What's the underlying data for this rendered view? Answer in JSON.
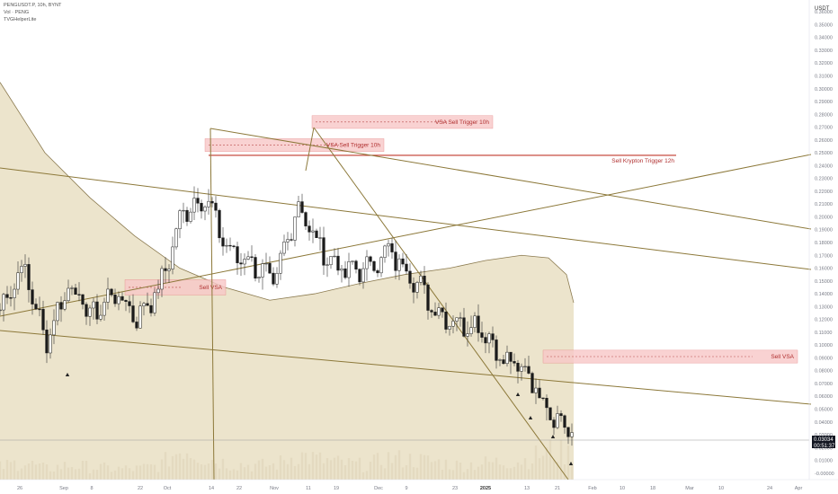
{
  "header": {
    "symbol_line": "PENGUSDT.P, 10h, BYNT",
    "vol_line": "Vol · PENG",
    "indicator_line": "TVGHelperLite"
  },
  "colors": {
    "background": "#ffffff",
    "candle": "#1a1a1a",
    "wick": "#333333",
    "volume": "#b6ae9a",
    "band_fill": "#e9dfc3",
    "band_line": "#8b7a4f",
    "trendline": "#8c7839",
    "zone_fill": "#f8c8c8",
    "zone_border": "#e27777",
    "red_line": "#c0392b",
    "price_tag": "#131722"
  },
  "chart_data": {
    "type": "candlestick",
    "currency": "USDT",
    "y_axis": {
      "range": [
        -0.005,
        0.365
      ],
      "ticks": [
        "-0.00000",
        "0.01000",
        "0.02000",
        "0.03000",
        "0.04000",
        "0.05000",
        "0.06000",
        "0.07000",
        "0.08000",
        "0.09000",
        "0.10000",
        "0.11000",
        "0.12000",
        "0.13000",
        "0.14000",
        "0.15000",
        "0.16000",
        "0.17000",
        "0.18000",
        "0.19000",
        "0.20000",
        "0.21000",
        "0.22000",
        "0.23000",
        "0.24000",
        "0.25000",
        "0.26000",
        "0.27000",
        "0.28000",
        "0.29000",
        "0.30000",
        "0.31000",
        "0.32000",
        "0.33000",
        "0.34000",
        "0.35000",
        "0.36000"
      ]
    },
    "x_axis": {
      "ticks": [
        "26",
        "Sep",
        "8",
        "22",
        "Oct",
        "14",
        "22",
        "Nov",
        "11",
        "19",
        "Dec",
        "9",
        "23",
        "2025",
        "13",
        "21",
        "Feb",
        "10",
        "18",
        "Mar",
        "10",
        "24",
        "Apr"
      ]
    },
    "last_price": "0.03034",
    "countdown": "00:51:37",
    "price_path": [
      [
        0.125,
        0.13
      ],
      [
        0.15,
        0.175
      ],
      [
        0.11,
        0.095
      ],
      [
        0.135,
        0.16
      ],
      [
        0.115,
        0.13
      ],
      [
        0.132,
        0.15
      ],
      [
        0.118,
        0.125
      ],
      [
        0.15,
        0.14
      ],
      [
        0.165,
        0.245
      ],
      [
        0.235,
        0.195
      ],
      [
        0.18,
        0.165
      ],
      [
        0.155,
        0.175
      ],
      [
        0.14,
        0.155
      ],
      [
        0.185,
        0.235
      ],
      [
        0.185,
        0.165
      ],
      [
        0.16,
        0.155
      ],
      [
        0.165,
        0.155
      ],
      [
        0.16,
        0.185
      ],
      [
        0.165,
        0.145
      ],
      [
        0.12,
        0.135
      ],
      [
        0.125,
        0.11
      ],
      [
        0.125,
        0.105
      ],
      [
        0.09,
        0.085
      ],
      [
        0.075,
        0.085
      ],
      [
        0.06,
        0.04
      ],
      [
        0.031,
        0.03
      ]
    ],
    "volume_profile": [
      0.35,
      0.5,
      0.3,
      0.4,
      0.35,
      0.3,
      0.3,
      0.4,
      0.9,
      0.6,
      0.45,
      0.4,
      0.4,
      0.7,
      0.55,
      0.45,
      0.4,
      0.6,
      0.55,
      0.5,
      0.4,
      0.45,
      0.5,
      0.55,
      0.8,
      0.7
    ],
    "ma_band": {
      "x_dates": [
        "26",
        "Sep",
        "8",
        "22",
        "Oct",
        "14",
        "22",
        "Nov",
        "11",
        "19",
        "Dec",
        "9",
        "23",
        "2025",
        "13",
        "21"
      ],
      "y_values": [
        0.305,
        0.25,
        0.215,
        0.185,
        0.16,
        0.145,
        0.135,
        0.14,
        0.148,
        0.155,
        0.16,
        0.166,
        0.17,
        0.168,
        0.155,
        0.133
      ]
    },
    "zones": [
      {
        "label": "VSA Sell Trigger 10h",
        "x_start": "14",
        "x_end": "19",
        "y_range": [
          0.251,
          0.261
        ]
      },
      {
        "label": "VSA Sell Trigger 10h",
        "x_start": "11",
        "x_end": "23",
        "y_range": [
          0.269,
          0.279
        ]
      },
      {
        "label": "Sell VSA",
        "x_start": "8",
        "x_end": "14",
        "y_range": [
          0.139,
          0.151
        ]
      },
      {
        "label": "Sell VSA",
        "x_start": "21",
        "x_end": "Apr",
        "y_range": [
          0.086,
          0.096
        ]
      }
    ],
    "red_line": {
      "label": "Sell Krypton Trigger 12h",
      "y": 0.248
    }
  }
}
